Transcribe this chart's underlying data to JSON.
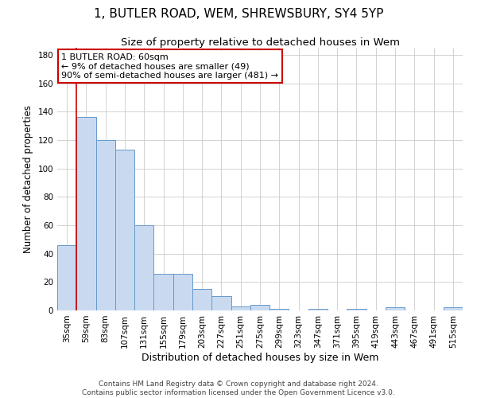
{
  "title1": "1, BUTLER ROAD, WEM, SHREWSBURY, SY4 5YP",
  "title2": "Size of property relative to detached houses in Wem",
  "xlabel": "Distribution of detached houses by size in Wem",
  "ylabel": "Number of detached properties",
  "categories": [
    "35sqm",
    "59sqm",
    "83sqm",
    "107sqm",
    "131sqm",
    "155sqm",
    "179sqm",
    "203sqm",
    "227sqm",
    "251sqm",
    "275sqm",
    "299sqm",
    "323sqm",
    "347sqm",
    "371sqm",
    "395sqm",
    "419sqm",
    "443sqm",
    "467sqm",
    "491sqm",
    "515sqm"
  ],
  "values": [
    46,
    136,
    120,
    113,
    60,
    26,
    26,
    15,
    10,
    3,
    4,
    1,
    0,
    1,
    0,
    1,
    0,
    2,
    0,
    0,
    2
  ],
  "bar_face_color": "#c9daf0",
  "bar_edge_color": "#6699cc",
  "annotation_box_text": "1 BUTLER ROAD: 60sqm\n← 9% of detached houses are smaller (49)\n90% of semi-detached houses are larger (481) →",
  "annotation_box_color": "#ffffff",
  "annotation_box_edge_color": "#cc0000",
  "vline_color": "#cc0000",
  "vline_x_index": 1,
  "ylim": [
    0,
    185
  ],
  "yticks": [
    0,
    20,
    40,
    60,
    80,
    100,
    120,
    140,
    160,
    180
  ],
  "footer_text": "Contains HM Land Registry data © Crown copyright and database right 2024.\nContains public sector information licensed under the Open Government Licence v3.0.",
  "background_color": "#ffffff",
  "grid_color": "#cccccc",
  "title1_fontsize": 11,
  "title2_fontsize": 9.5,
  "xlabel_fontsize": 9,
  "ylabel_fontsize": 8.5,
  "tick_fontsize": 7.5,
  "annotation_fontsize": 8,
  "footer_fontsize": 6.5
}
